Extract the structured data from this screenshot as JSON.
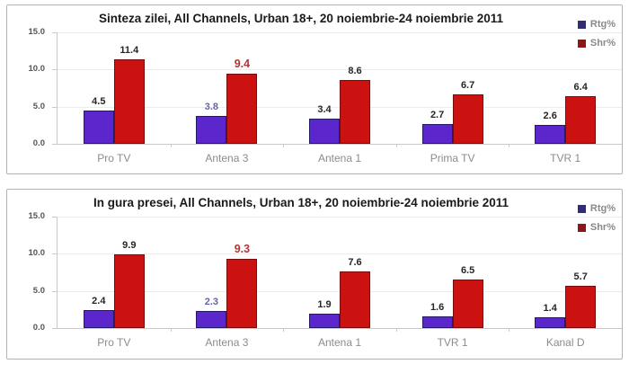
{
  "page": {
    "background": "#ffffff",
    "panel_border": "#b3b3b3"
  },
  "chart_data": [
    {
      "type": "bar",
      "title": "Sinteza zilei, All Channels, Urban 18+, 20 noiembrie-24 noiembrie 2011",
      "categories": [
        "Pro TV",
        "Antena 3",
        "Antena 1",
        "Prima TV",
        "TVR 1"
      ],
      "series": [
        {
          "name": "Rtg%",
          "values": [
            4.5,
            3.8,
            3.4,
            2.7,
            2.6
          ],
          "fill": "#5b27cc",
          "border": "#221a66",
          "legend_color": "#332d75"
        },
        {
          "name": "Shr%",
          "values": [
            11.4,
            9.4,
            8.6,
            6.7,
            6.4
          ],
          "fill": "#cc1111",
          "border": "#7d0a0a",
          "legend_color": "#8c1717"
        }
      ],
      "ylim": [
        0,
        15
      ],
      "yticks": [
        0,
        5,
        10,
        15
      ],
      "grid": true,
      "legend_position": "top-right",
      "highlight_category": "Antena 3",
      "label_colors": {
        "default": "#262626",
        "highlight_rtg": "#6464a6",
        "highlight_shr": "#b23535"
      }
    },
    {
      "type": "bar",
      "title": "In gura presei, All Channels, Urban 18+, 20 noiembrie-24 noiembrie 2011",
      "categories": [
        "Pro TV",
        "Antena 3",
        "Antena 1",
        "TVR 1",
        "Kanal D"
      ],
      "series": [
        {
          "name": "Rtg%",
          "values": [
            2.4,
            2.3,
            1.9,
            1.6,
            1.4
          ],
          "fill": "#5b27cc",
          "border": "#221a66",
          "legend_color": "#332d75"
        },
        {
          "name": "Shr%",
          "values": [
            9.9,
            9.3,
            7.6,
            6.5,
            5.7
          ],
          "fill": "#cc1111",
          "border": "#7d0a0a",
          "legend_color": "#8c1717"
        }
      ],
      "ylim": [
        0,
        15
      ],
      "yticks": [
        0,
        5,
        10,
        15
      ],
      "grid": true,
      "legend_position": "top-right",
      "highlight_category": "Antena 3",
      "label_colors": {
        "default": "#262626",
        "highlight_rtg": "#6464a6",
        "highlight_shr": "#b23535"
      }
    }
  ]
}
